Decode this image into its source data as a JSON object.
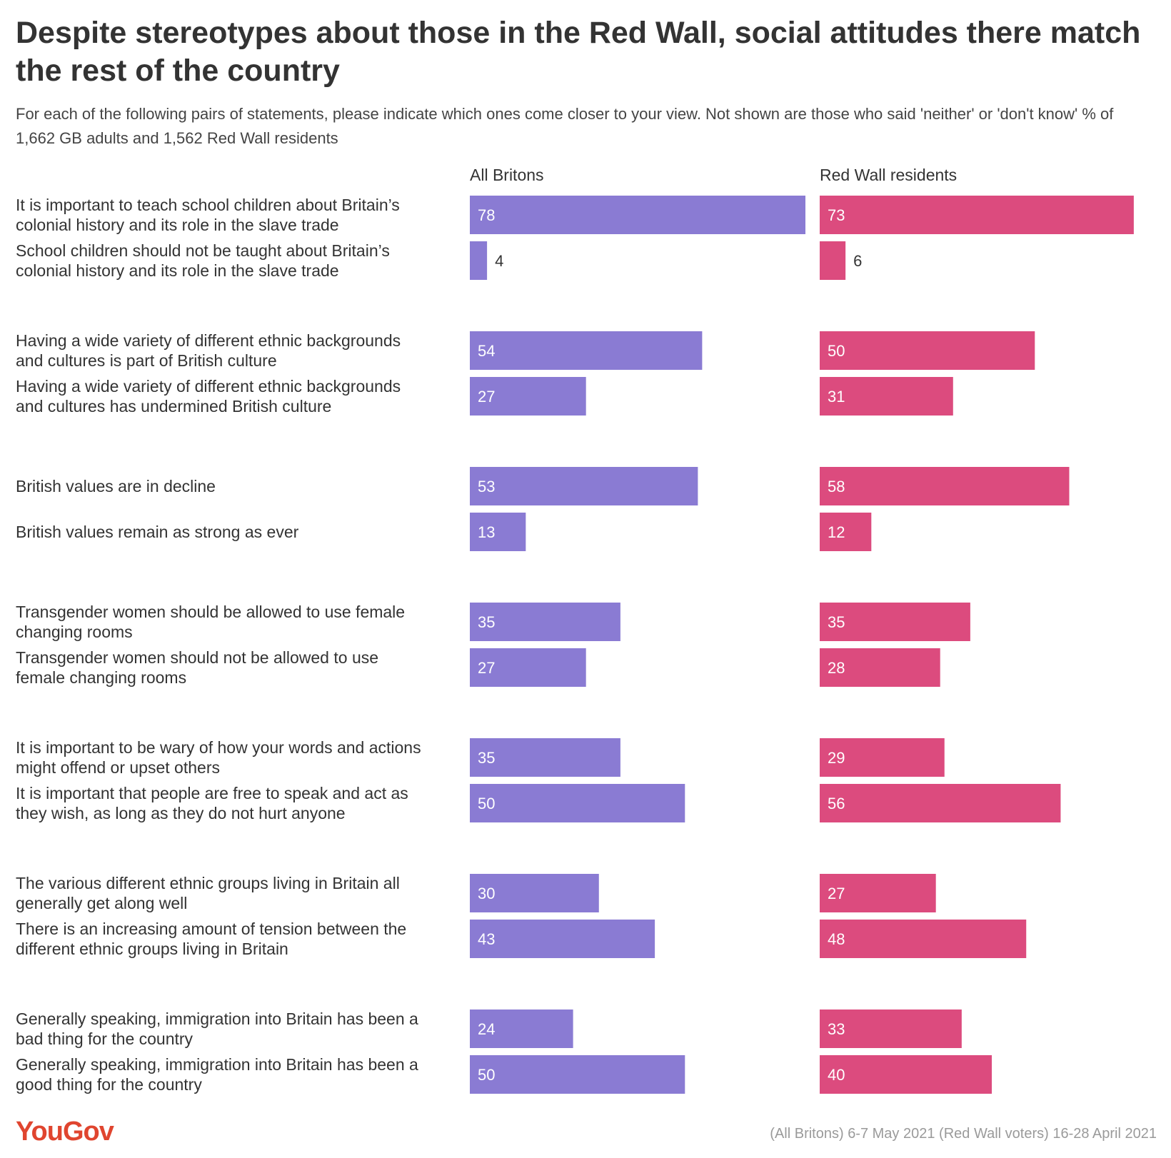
{
  "title": "Despite stereotypes about those in the Red Wall, social attitudes there match the rest of the country",
  "subtitle": "For each of the following pairs of statements, please indicate which ones come closer to your view. Not shown are those who said 'neither' or 'don't know' % of 1,662 GB adults and 1,562 Red Wall residents",
  "footer": {
    "logo": "YouGov",
    "source": "(All Britons) 6-7 May 2021 (Red Wall voters) 16-28 April 2021"
  },
  "colors": {
    "all_britons": "#8a7bd3",
    "red_wall": "#dc4b7e"
  },
  "chart_data": {
    "type": "bar",
    "orientation": "horizontal",
    "series": [
      {
        "name": "All Britons",
        "values": [
          78,
          4,
          54,
          27,
          53,
          13,
          35,
          27,
          35,
          50,
          30,
          43,
          24,
          50
        ]
      },
      {
        "name": "Red Wall residents",
        "values": [
          73,
          6,
          50,
          31,
          58,
          12,
          35,
          28,
          29,
          56,
          27,
          48,
          33,
          40
        ]
      }
    ],
    "categories": [
      [
        "It is important to teach school children about Britain’s",
        "colonial history and its role in the slave trade"
      ],
      [
        "School children should not be taught about Britain’s",
        "colonial history and its role in the slave trade"
      ],
      [
        "Having a wide variety of different ethnic backgrounds",
        "and cultures is part of British culture"
      ],
      [
        "Having a wide variety of different ethnic backgrounds",
        "and cultures has undermined British culture"
      ],
      [
        "British values are in decline"
      ],
      [
        "British values remain as strong as ever"
      ],
      [
        "Transgender women should be allowed to use female",
        "changing rooms"
      ],
      [
        "Transgender women should not be allowed to use",
        "female changing rooms"
      ],
      [
        "It is important to be wary of how your words and actions",
        "might offend or upset others"
      ],
      [
        "It is important that people are free to speak and act as",
        "they wish, as long as they do not hurt anyone"
      ],
      [
        "The various different ethnic groups living in Britain all",
        "generally get along well"
      ],
      [
        "There is an increasing amount of tension between the",
        "different ethnic groups living in Britain"
      ],
      [
        "Generally speaking, immigration into Britain has been a",
        "bad thing for the country"
      ],
      [
        "Generally speaking, immigration into Britain has been a",
        "good thing for the country"
      ]
    ],
    "xlim": [
      0,
      78
    ],
    "data_labels": true,
    "legend": "column headers"
  }
}
